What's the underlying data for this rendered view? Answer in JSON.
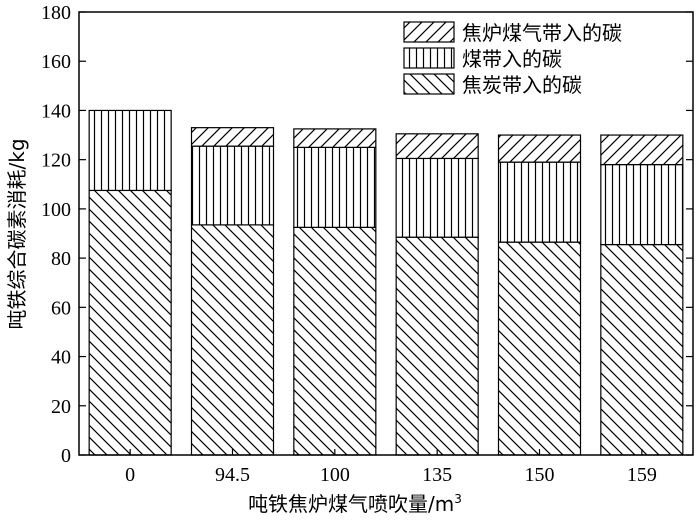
{
  "chart_data": {
    "type": "bar",
    "stacked": true,
    "categories": [
      "0",
      "94.5",
      "100",
      "135",
      "150",
      "159"
    ],
    "series": [
      {
        "name": "焦炭带入的碳",
        "values": [
          107.5,
          93.5,
          92.5,
          88.5,
          86.5,
          85.5
        ],
        "pattern": "diagonal-down"
      },
      {
        "name": "煤带入的碳",
        "values": [
          32.5,
          32.0,
          32.5,
          32.0,
          32.5,
          32.5
        ],
        "pattern": "vertical"
      },
      {
        "name": "焦炉煤气带入的碳",
        "values": [
          0,
          7.5,
          7.5,
          10.0,
          11.0,
          12.0
        ],
        "pattern": "diagonal-up"
      }
    ],
    "legend_order": [
      "焦炉煤气带入的碳",
      "煤带入的碳",
      "焦炭带入的碳"
    ],
    "legend_position": "top-right",
    "xlabel_text": "吨铁焦炉煤气喷吹量/m",
    "xlabel_sup": "3",
    "ylabel": "吨铁综合碳素消耗/kg",
    "ylim": [
      0,
      180
    ],
    "yticks": [
      "0",
      "20",
      "40",
      "60",
      "80",
      "100",
      "120",
      "140",
      "160",
      "180"
    ],
    "grid": false
  }
}
